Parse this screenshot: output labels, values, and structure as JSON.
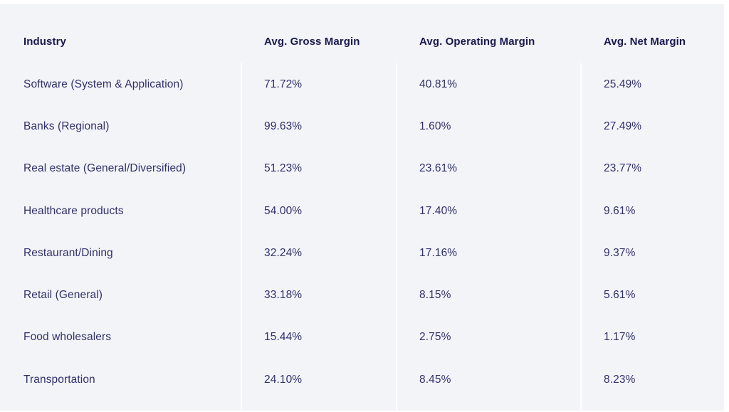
{
  "table": {
    "columns": [
      "Industry",
      "Avg. Gross Margin",
      "Avg. Operating Margin",
      "Avg. Net Margin"
    ],
    "rows": [
      {
        "industry": "Software (System & Application)",
        "gross": "71.72%",
        "operating": "40.81%",
        "net": "25.49%"
      },
      {
        "industry": "Banks (Regional)",
        "gross": "99.63%",
        "operating": "1.60%",
        "net": "27.49%"
      },
      {
        "industry": "Real estate (General/Diversified)",
        "gross": "51.23%",
        "operating": "23.61%",
        "net": "23.77%"
      },
      {
        "industry": "Healthcare products",
        "gross": "54.00%",
        "operating": "17.40%",
        "net": "9.61%"
      },
      {
        "industry": "Restaurant/Dining",
        "gross": "32.24%",
        "operating": "17.16%",
        "net": "9.37%"
      },
      {
        "industry": "Retail (General)",
        "gross": "33.18%",
        "operating": "8.15%",
        "net": "5.61%"
      },
      {
        "industry": "Food wholesalers",
        "gross": "15.44%",
        "operating": "2.75%",
        "net": "1.17%"
      },
      {
        "industry": "Transportation",
        "gross": "24.10%",
        "operating": "8.45%",
        "net": "8.23%"
      }
    ]
  },
  "colors": {
    "panel_bg": "#f3f4f8",
    "header_text": "#18184f",
    "body_text": "#30306b",
    "divider": "#ffffff",
    "page_bg": "#ffffff"
  },
  "chart_data": {
    "type": "table",
    "title": "",
    "columns": [
      "Industry",
      "Avg. Gross Margin",
      "Avg. Operating Margin",
      "Avg. Net Margin"
    ],
    "categories": [
      "Software (System & Application)",
      "Banks (Regional)",
      "Real estate (General/Diversified)",
      "Healthcare products",
      "Restaurant/Dining",
      "Retail (General)",
      "Food wholesalers",
      "Transportation"
    ],
    "series": [
      {
        "name": "Avg. Gross Margin",
        "values": [
          71.72,
          99.63,
          51.23,
          54.0,
          32.24,
          33.18,
          15.44,
          24.1
        ]
      },
      {
        "name": "Avg. Operating Margin",
        "values": [
          40.81,
          1.6,
          23.61,
          17.4,
          17.16,
          8.15,
          2.75,
          8.45
        ]
      },
      {
        "name": "Avg. Net Margin",
        "values": [
          25.49,
          27.49,
          23.77,
          9.61,
          9.37,
          5.61,
          1.17,
          8.23
        ]
      }
    ],
    "value_unit": "%"
  }
}
